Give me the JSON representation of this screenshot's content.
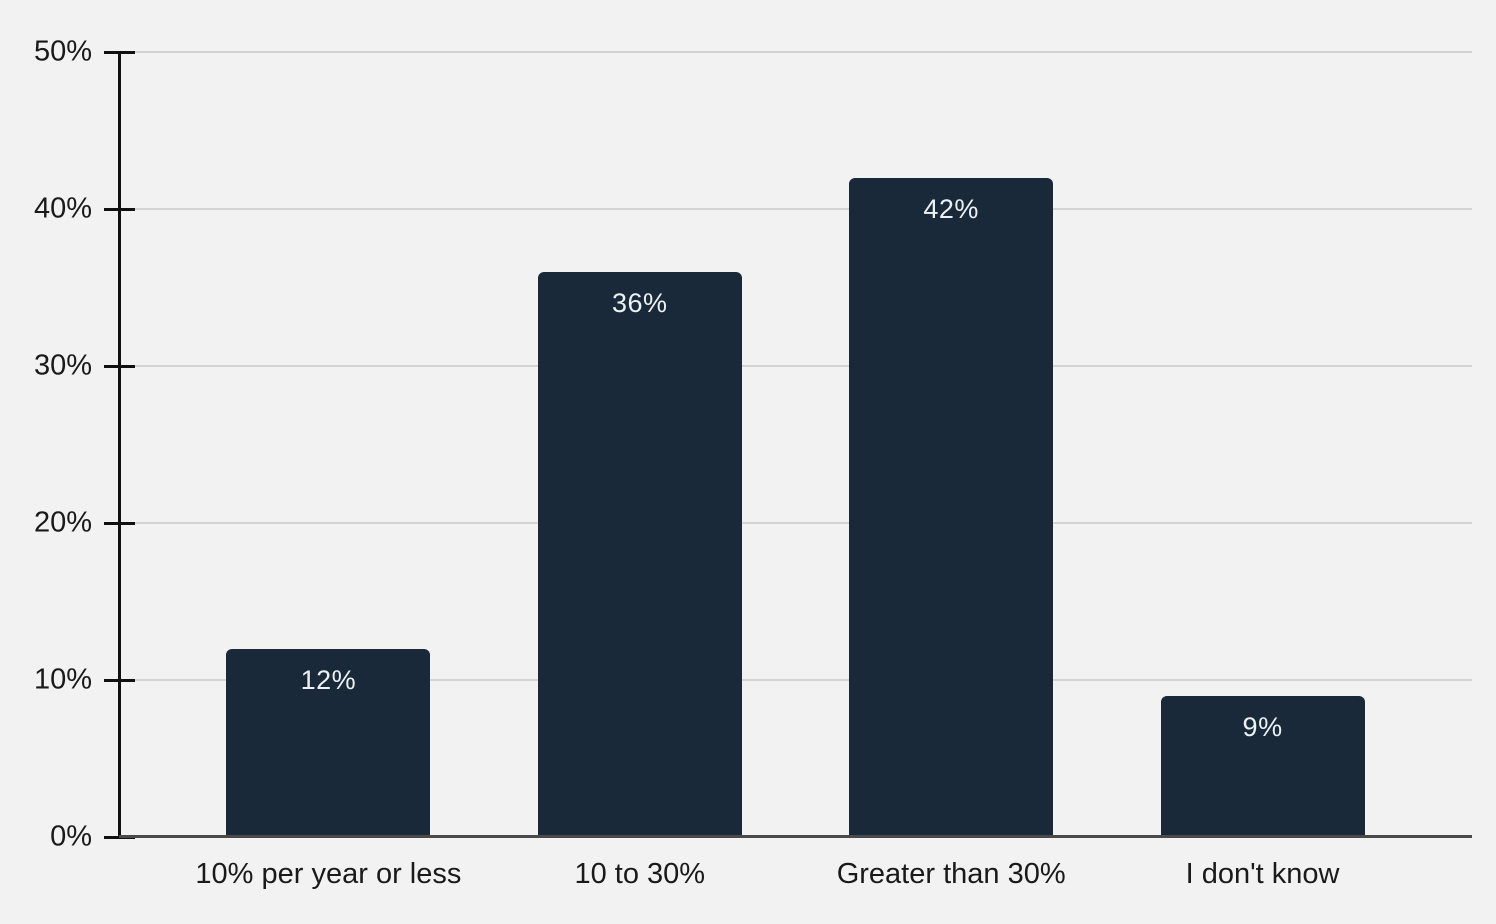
{
  "chart_data": {
    "type": "bar",
    "title": "",
    "categories": [
      "10% per year or less",
      "10 to 30%",
      "Greater than 30%",
      "I don't know"
    ],
    "values": [
      12,
      36,
      42,
      9
    ],
    "value_labels": [
      "12%",
      "36%",
      "42%",
      "9%"
    ],
    "y_ticks": [
      {
        "value": 0,
        "label": "0%"
      },
      {
        "value": 10,
        "label": "10%"
      },
      {
        "value": 20,
        "label": "20%"
      },
      {
        "value": 30,
        "label": "30%"
      },
      {
        "value": 40,
        "label": "40%"
      },
      {
        "value": 50,
        "label": "50%"
      }
    ],
    "ylim": [
      0,
      50
    ],
    "grid": "horizontal-on",
    "legend": "none",
    "colors": {
      "background": "#f2f2f2",
      "bar": "#192939",
      "gridline": "#d4d4d4",
      "y_axis": "#111111",
      "baseline": "#4a4a4a",
      "axis_label": "#1a1a1a",
      "data_label": "#edf1f4"
    }
  }
}
